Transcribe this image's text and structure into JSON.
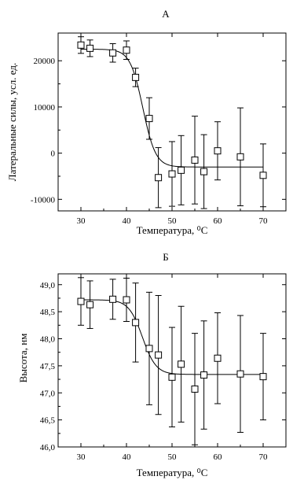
{
  "chart_data": [
    {
      "type": "scatter",
      "title": "А",
      "xlabel": "Температура, ⁰С",
      "ylabel": "Латеральные силы, усл. ед.",
      "xlim": [
        25,
        75
      ],
      "ylim": [
        -12500,
        26000
      ],
      "xticks": [
        30,
        40,
        50,
        60,
        70
      ],
      "yticks": [
        -10000,
        0,
        10000,
        20000
      ],
      "xtick_labels": [
        "30",
        "40",
        "50",
        "60",
        "70"
      ],
      "ytick_labels": [
        "-10000",
        "0",
        "10000",
        "20000"
      ],
      "series": [
        {
          "x": [
            30,
            32,
            37,
            40,
            42,
            45,
            47,
            50,
            52,
            55,
            57,
            60,
            65,
            70
          ],
          "y": [
            23400,
            22700,
            21700,
            22300,
            16400,
            7500,
            -5300,
            -4500,
            -3700,
            -1500,
            -4000,
            500,
            -800,
            -4800
          ],
          "err": [
            1800,
            1800,
            2000,
            2000,
            2000,
            4500,
            6500,
            7000,
            7500,
            9500,
            8000,
            6300,
            10600,
            6800
          ]
        }
      ],
      "fit": {
        "low": -3000,
        "high": 22500,
        "x0": 43.6,
        "dx": 1.4
      }
    },
    {
      "type": "scatter",
      "title": "Б",
      "xlabel": "Температура, ⁰С",
      "ylabel": "Высота, нм",
      "xlim": [
        25,
        75
      ],
      "ylim": [
        46.0,
        49.2
      ],
      "xticks": [
        30,
        40,
        50,
        60,
        70
      ],
      "yticks": [
        46.0,
        46.5,
        47.0,
        47.5,
        48.0,
        48.5,
        49.0
      ],
      "xtick_labels": [
        "30",
        "40",
        "50",
        "60",
        "70"
      ],
      "ytick_labels": [
        "46,0",
        "46,5",
        "47,0",
        "47,5",
        "48,0",
        "48,5",
        "49,0"
      ],
      "series": [
        {
          "x": [
            30,
            32,
            37,
            40,
            42,
            45,
            47,
            50,
            52,
            55,
            57,
            60,
            65,
            70
          ],
          "y": [
            48.69,
            48.63,
            48.73,
            48.72,
            48.3,
            47.82,
            47.7,
            47.29,
            47.53,
            47.07,
            47.33,
            47.64,
            47.35,
            47.3
          ],
          "err": [
            0.44,
            0.44,
            0.37,
            0.4,
            0.73,
            1.04,
            1.1,
            0.92,
            1.07,
            1.03,
            1.0,
            0.84,
            1.08,
            0.8
          ]
        }
      ],
      "fit": {
        "low": 47.34,
        "high": 48.72,
        "x0": 43.5,
        "dx": 1.5
      }
    }
  ]
}
